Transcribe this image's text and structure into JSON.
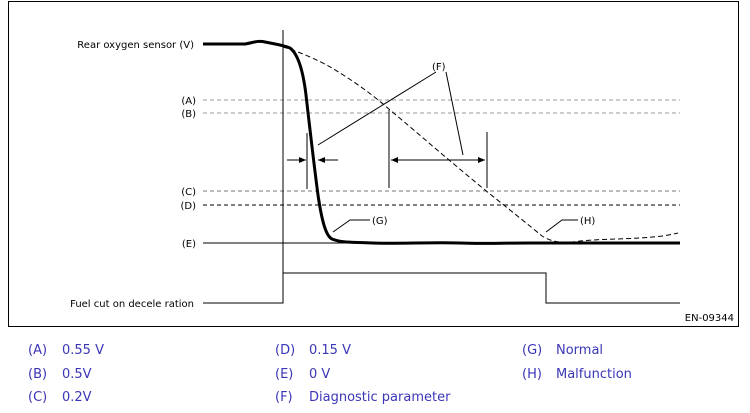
{
  "diagram": {
    "labels": {
      "rear_o2": "Rear oxygen sensor (V)",
      "fuel_cut": "Fuel cut on decele ration",
      "ref_code": "EN-09344",
      "level_a": "(A)",
      "level_b": "(B)",
      "level_c": "(C)",
      "level_d": "(D)",
      "level_e": "(E)",
      "callout_f": "(F)",
      "callout_g": "(G)",
      "callout_h": "(H)"
    }
  },
  "legend": [
    {
      "code": "(A)",
      "text": "0.55 V"
    },
    {
      "code": "(B)",
      "text": "0.5V"
    },
    {
      "code": "(C)",
      "text": "0.2V"
    },
    {
      "code": "(D)",
      "text": "0.15 V"
    },
    {
      "code": "(E)",
      "text": "0 V"
    },
    {
      "code": "(F)",
      "text": "Diagnostic parameter"
    },
    {
      "code": "(G)",
      "text": "Normal"
    },
    {
      "code": "(H)",
      "text": "Malfunction"
    }
  ],
  "colors": {
    "legend_text": "#3a36b8",
    "line": "#000000",
    "dashed_level": "#999999"
  }
}
